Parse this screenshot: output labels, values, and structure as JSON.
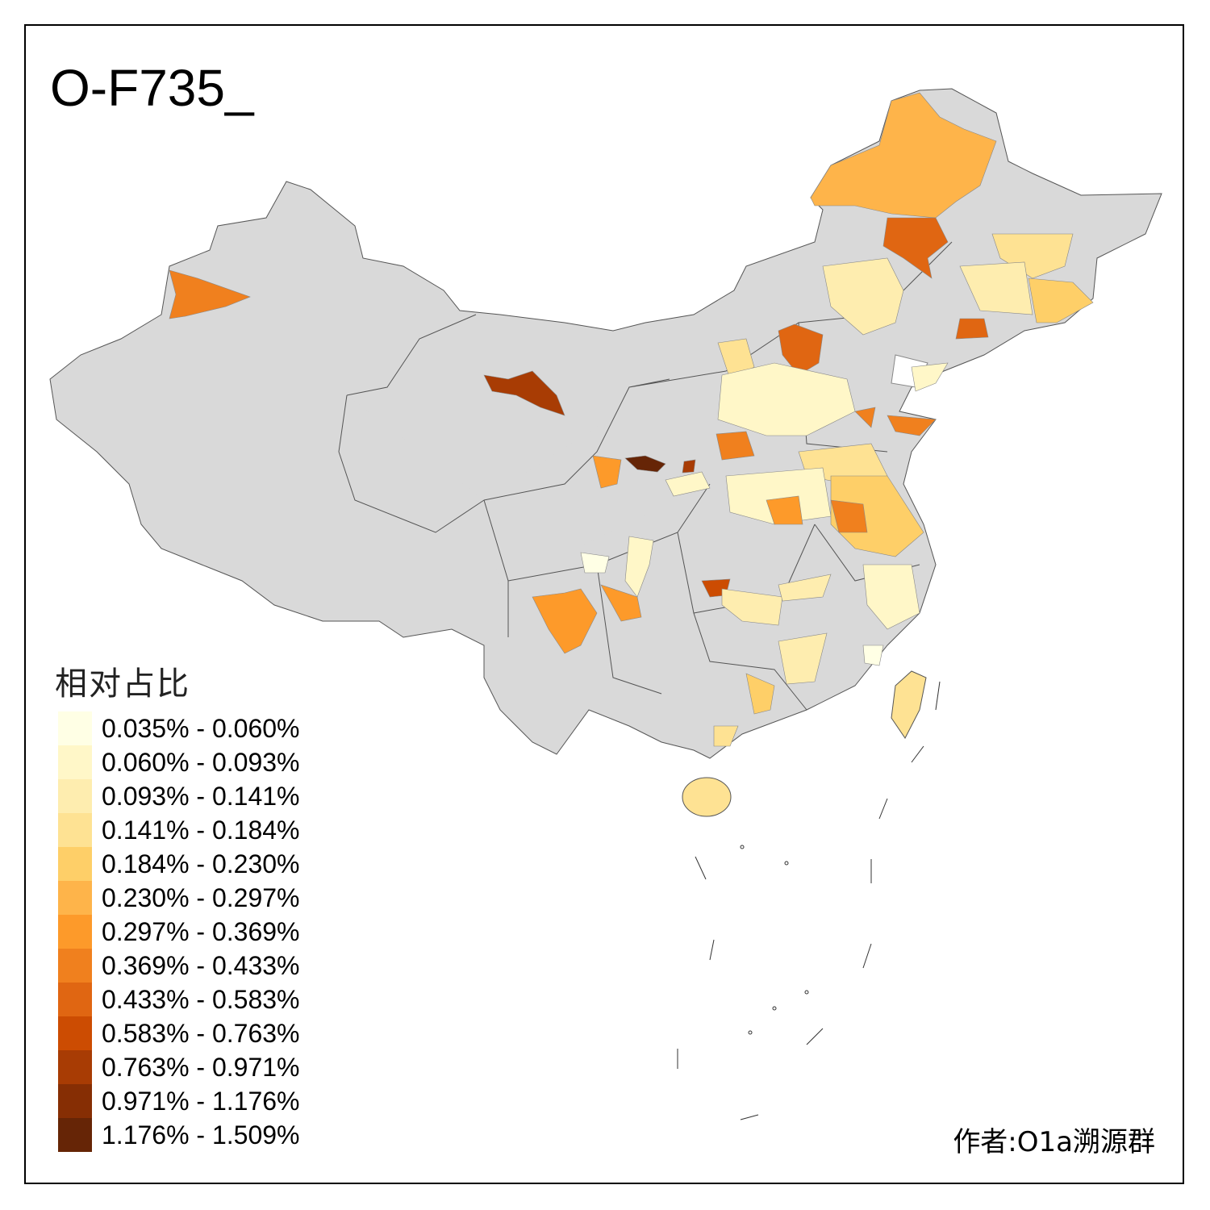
{
  "title": "O-F735_",
  "legend": {
    "title": "相对占比",
    "classes": [
      {
        "label": "0.035% - 0.060%",
        "color": "#ffffe5"
      },
      {
        "label": "0.060% - 0.093%",
        "color": "#fff7c8"
      },
      {
        "label": "0.093% - 0.141%",
        "color": "#feedaf"
      },
      {
        "label": "0.141% - 0.184%",
        "color": "#fee293"
      },
      {
        "label": "0.184% - 0.230%",
        "color": "#fecf68"
      },
      {
        "label": "0.230% - 0.297%",
        "color": "#feb44a"
      },
      {
        "label": "0.297% - 0.369%",
        "color": "#fd9a2a"
      },
      {
        "label": "0.369% - 0.433%",
        "color": "#f0801e"
      },
      {
        "label": "0.433% - 0.583%",
        "color": "#e06612"
      },
      {
        "label": "0.583% - 0.763%",
        "color": "#cc4c02"
      },
      {
        "label": "0.763% - 0.971%",
        "color": "#a83c04"
      },
      {
        "label": "0.971% - 1.176%",
        "color": "#862e04"
      },
      {
        "label": "1.176% - 1.509%",
        "color": "#662506"
      }
    ]
  },
  "author": "作者:O1a溯源群",
  "colors": {
    "no_data": "#d9d9d9"
  }
}
